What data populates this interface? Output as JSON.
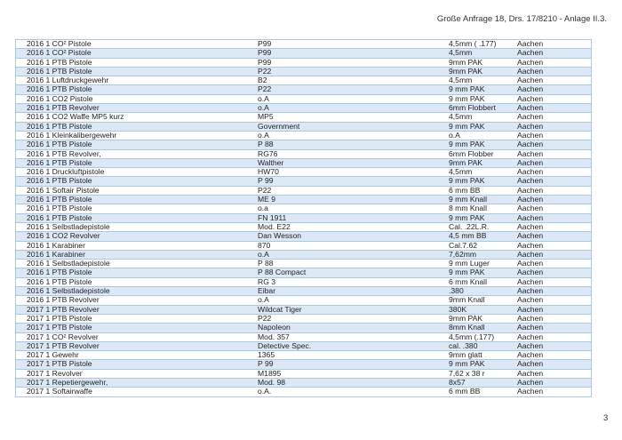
{
  "header": {
    "title": "Große Anfrage 18, Drs. 17/8210 - Anlage II.3."
  },
  "page_number": "3",
  "colors": {
    "row_alt": "#dce8f5",
    "grid": "#a9c8e8"
  },
  "rows": [
    [
      "2016 1 CO² Pistole",
      "P99",
      "4,5mm ( .177)",
      "Aachen"
    ],
    [
      "2016 1 CO² Pistole",
      "P99",
      "4,5mm",
      "Aachen"
    ],
    [
      "2016 1 PTB Pistole",
      "P99",
      "9mm PAK",
      "Aachen"
    ],
    [
      "2016 1 PTB Pistole",
      "P22",
      "9mm PAK",
      "Aachen"
    ],
    [
      "2016 1 Luftdruckgewehr",
      "B2",
      "4,5mm",
      "Aachen"
    ],
    [
      "2016 1 PTB Pistole",
      "P22",
      "9 mm PAK",
      "Aachen"
    ],
    [
      "2016 1 CO2 Pistole",
      "o.A",
      "9 mm PAK",
      "Aachen"
    ],
    [
      "2016 1 PTB Revolver",
      "o.A",
      "6mm Flobbert",
      "Aachen"
    ],
    [
      "2016 1 CO2 Waffe MP5 kurz",
      "MP5",
      "4,5mm",
      "Aachen"
    ],
    [
      "2016 1 PTB Pistole",
      "Government",
      "9 mm PAK",
      "Aachen"
    ],
    [
      "2016 1 Kleinkalibergewehr",
      "o.A",
      "o.A",
      "Aachen"
    ],
    [
      "2016 1 PTB Pistole",
      "P 88",
      "9 mm PAK",
      "Aachen"
    ],
    [
      "2016 1 PTB Revolver,",
      "RG76",
      "6mm Flobber",
      "Aachen"
    ],
    [
      "2016 1 PTB Pistole",
      "Walther",
      "9mm PAK",
      "Aachen"
    ],
    [
      "2016 1 Druckluftpistole",
      "HW70",
      "4,5mm",
      "Aachen"
    ],
    [
      "2016 1 PTB Pistole",
      "P 99",
      "9 mm PAK",
      "Aachen"
    ],
    [
      "2016 1 Softair Pistole",
      "P22",
      "6 mm BB",
      "Aachen"
    ],
    [
      "2016 1 PTB Pistole",
      "ME 9",
      "9 mm Knall",
      "Aachen"
    ],
    [
      "2016 1 PTB Pistole",
      "o.a",
      "8 mm Knall",
      "Aachen"
    ],
    [
      "2016 1 PTB Pistole",
      "FN 1911",
      "9 mm PAK",
      "Aachen"
    ],
    [
      "2016 1 Selbstladepistole",
      "Mod. E22",
      "Cal. .22L.R.",
      "Aachen"
    ],
    [
      "2016 1 CO2 Revolver",
      "Dan Wesson",
      "4,5 mm BB",
      "Aachen"
    ],
    [
      "2016 1 Karabiner",
      "870",
      "Cal.7.62",
      "Aachen"
    ],
    [
      "2016 1 Karabiner",
      "o.A",
      "7,62mm",
      "Aachen"
    ],
    [
      "2016 1 Selbstladepistole",
      "P 88",
      "9 mm Luger",
      "Aachen"
    ],
    [
      "2016 1 PTB Pistole",
      "P 88 Compact",
      "9 mm PAK",
      "Aachen"
    ],
    [
      "2016 1 PTB Pistole",
      "RG 3",
      "6 mm Knall",
      "Aachen"
    ],
    [
      "2016 1 Selbstladepistole",
      "Eibar",
      ".380",
      "Aachen"
    ],
    [
      "2016 1 PTB Revolver",
      "o.A",
      "9mm Knall",
      "Aachen"
    ],
    [
      "2017 1 PTB Revolver",
      "Wildcat Tiger",
      "380K",
      "Aachen"
    ],
    [
      "2017 1 PTB Pistole",
      "P22",
      "9mm PAK",
      "Aachen"
    ],
    [
      "2017 1 PTB Pistole",
      "Napoleon",
      "8mm Knall",
      "Aachen"
    ],
    [
      "2017 1 CO² Revolver",
      "Mod. 357",
      "4,5mm (.177)",
      "Aachen"
    ],
    [
      "2017 1 PTB Revolver",
      "Detective Spec.",
      "cal. .380",
      "Aachen"
    ],
    [
      "2017 1 Gewehr",
      "1365",
      "9mm glatt",
      "Aachen"
    ],
    [
      "2017 1 PTB Pistole",
      "P 99",
      "9 mm PAK",
      "Aachen"
    ],
    [
      "2017 1 Revolver",
      "M1895",
      "7,62 x 38 r",
      "Aachen"
    ],
    [
      "2017 1 Repetiergewehr,",
      "Mod. 98",
      "8x57",
      "Aachen"
    ],
    [
      "2017 1 Softairwaffe",
      "o.A.",
      "6 mm BB",
      "Aachen"
    ]
  ]
}
